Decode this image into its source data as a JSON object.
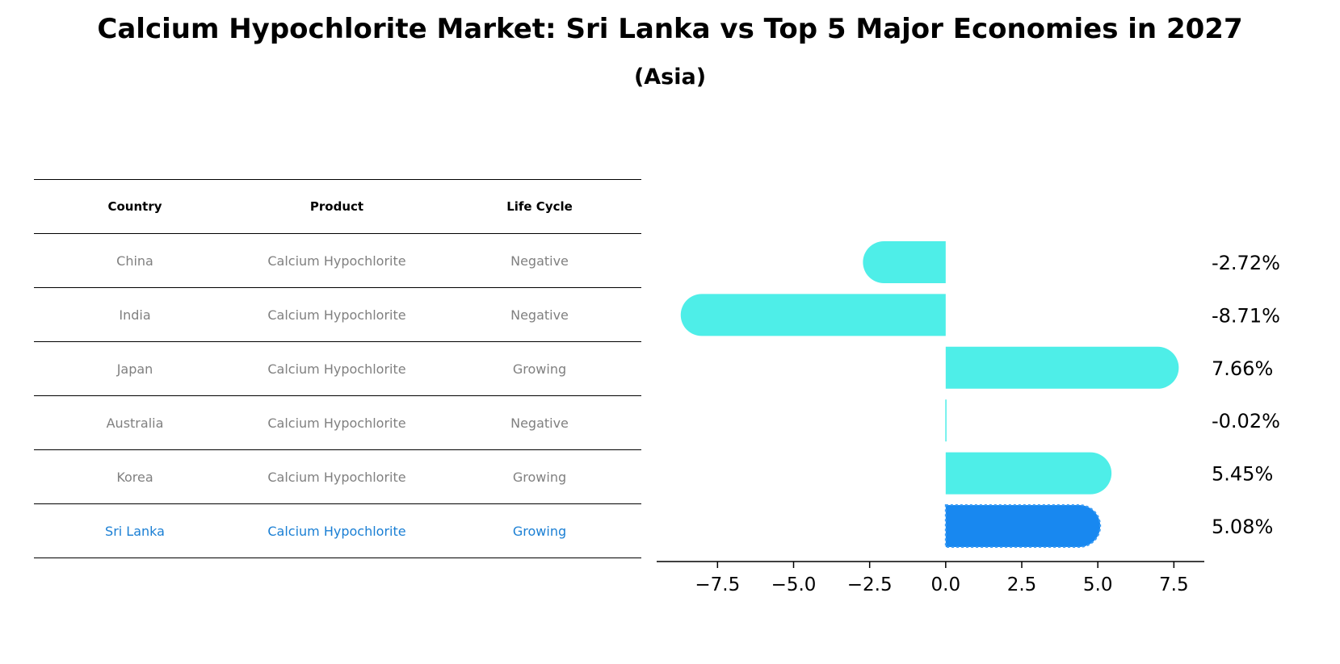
{
  "title": "Calcium Hypochlorite Market: Sri Lanka vs Top 5 Major Economies in 2027",
  "subtitle": "(Asia)",
  "table": {
    "headers": [
      "Country",
      "Product",
      "Life Cycle"
    ],
    "rows": [
      {
        "country": "China",
        "product": "Calcium Hypochlorite",
        "life_cycle": "Negative"
      },
      {
        "country": "India",
        "product": "Calcium Hypochlorite",
        "life_cycle": "Negative"
      },
      {
        "country": "Japan",
        "product": "Calcium Hypochlorite",
        "life_cycle": "Growing"
      },
      {
        "country": "Australia",
        "product": "Calcium Hypochlorite",
        "life_cycle": "Negative"
      },
      {
        "country": "Korea",
        "product": "Calcium Hypochlorite",
        "life_cycle": "Growing"
      },
      {
        "country": "Sri Lanka",
        "product": "Calcium Hypochlorite",
        "life_cycle": "Growing"
      }
    ]
  },
  "chart_data": {
    "type": "bar",
    "orientation": "horizontal",
    "categories": [
      "China",
      "India",
      "Japan",
      "Australia",
      "Korea",
      "Sri Lanka"
    ],
    "values": [
      -2.72,
      -8.71,
      7.66,
      -0.02,
      5.45,
      5.08
    ],
    "value_labels": [
      "-2.72%",
      "-8.71%",
      "7.66%",
      "-0.02%",
      "5.45%",
      "5.08%"
    ],
    "xlim": [
      -9.5,
      8.5
    ],
    "xticks": [
      -7.5,
      -5.0,
      -2.5,
      0.0,
      2.5,
      5.0,
      7.5
    ],
    "xtick_labels": [
      "−7.5",
      "−5.0",
      "−2.5",
      "0.0",
      "2.5",
      "5.0",
      "7.5"
    ],
    "highlight_index": 5,
    "colors": {
      "bar": "#4eeee8",
      "highlight": "#1888f0",
      "highlight_text": "#1a7fd4"
    }
  }
}
